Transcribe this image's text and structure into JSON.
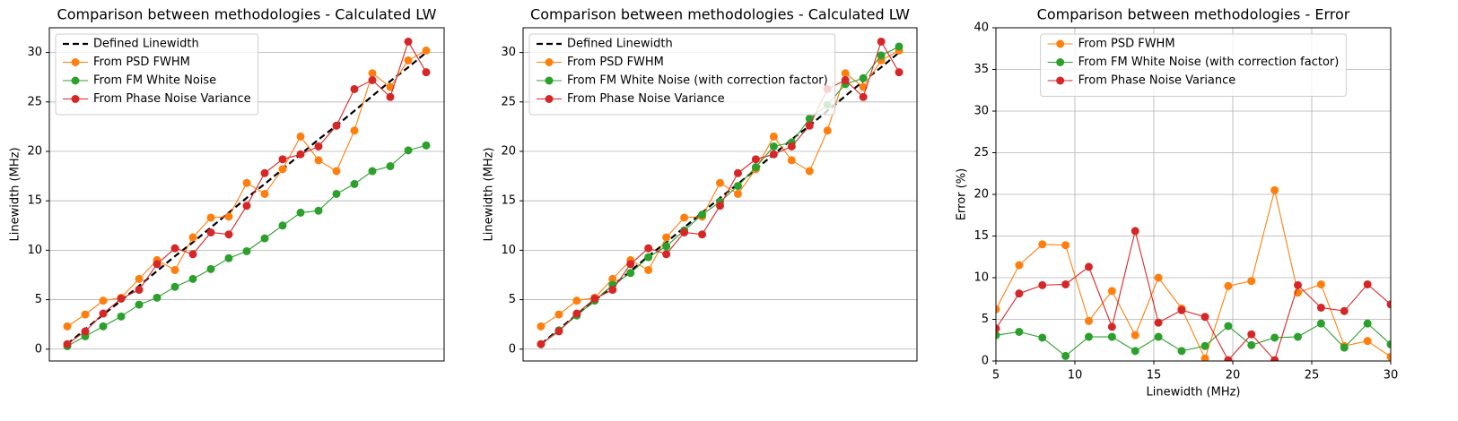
{
  "chart_data": [
    {
      "type": "line",
      "title": "Comparison between methodologies - Calculated LW",
      "ylabel": "Linewidth (MHz)",
      "categories": [
        null,
        null,
        null,
        null,
        null,
        null,
        null,
        null,
        null,
        null,
        null,
        null,
        null,
        null,
        null,
        null,
        null,
        null,
        null,
        null,
        null
      ],
      "ylim": [
        -1.2,
        32.5
      ],
      "yticks": [
        0,
        5,
        10,
        15,
        20,
        25,
        30
      ],
      "grid": "y",
      "legend": "upper left",
      "series": [
        {
          "name": "Defined Linewidth",
          "color": "#000000",
          "style": "dashed",
          "values": [
            0.5,
            2.0,
            3.5,
            4.9,
            6.4,
            7.9,
            9.4,
            10.8,
            12.3,
            13.8,
            15.3,
            16.7,
            18.2,
            19.7,
            21.2,
            22.6,
            24.1,
            25.6,
            27.1,
            28.5,
            30.0
          ]
        },
        {
          "name": "From PSD FWHM",
          "color": "#ff7f0e",
          "marker": "o",
          "values": [
            2.3,
            3.5,
            4.9,
            5.2,
            7.1,
            9.0,
            8.0,
            11.3,
            13.3,
            13.4,
            16.8,
            15.7,
            18.2,
            21.5,
            19.1,
            18.0,
            22.1,
            27.9,
            26.5,
            29.2,
            30.2
          ]
        },
        {
          "name": "From FM White Noise",
          "color": "#2ca02c",
          "marker": "o",
          "values": [
            0.3,
            1.3,
            2.3,
            3.3,
            4.5,
            5.2,
            6.3,
            7.1,
            8.1,
            9.2,
            9.9,
            11.2,
            12.5,
            13.8,
            14.0,
            15.7,
            16.7,
            18.0,
            18.5,
            20.1,
            20.6
          ]
        },
        {
          "name": "From Phase Noise Variance",
          "color": "#d62728",
          "marker": "o",
          "values": [
            0.5,
            1.8,
            3.6,
            5.1,
            6.0,
            8.6,
            10.2,
            9.6,
            11.8,
            11.6,
            14.5,
            17.8,
            19.2,
            19.7,
            20.5,
            22.6,
            26.3,
            27.2,
            25.5,
            31.1,
            28.0
          ]
        }
      ]
    },
    {
      "type": "line",
      "title": "Comparison between methodologies - Calculated LW",
      "ylabel": "Linewidth (MHz)",
      "categories": [
        null,
        null,
        null,
        null,
        null,
        null,
        null,
        null,
        null,
        null,
        null,
        null,
        null,
        null,
        null,
        null,
        null,
        null,
        null,
        null,
        null
      ],
      "ylim": [
        -1.2,
        32.5
      ],
      "yticks": [
        0,
        5,
        10,
        15,
        20,
        25,
        30
      ],
      "grid": "y",
      "legend": "upper left",
      "series": [
        {
          "name": "Defined Linewidth",
          "color": "#000000",
          "style": "dashed",
          "values": [
            0.5,
            2.0,
            3.5,
            4.9,
            6.4,
            7.9,
            9.4,
            10.8,
            12.3,
            13.8,
            15.3,
            16.7,
            18.2,
            19.7,
            21.2,
            22.6,
            24.1,
            25.6,
            27.1,
            28.5,
            30.0
          ]
        },
        {
          "name": "From PSD FWHM",
          "color": "#ff7f0e",
          "marker": "o",
          "values": [
            2.3,
            3.5,
            4.9,
            5.2,
            7.1,
            9.0,
            8.0,
            11.3,
            13.3,
            13.4,
            16.8,
            15.7,
            18.2,
            21.5,
            19.1,
            18.0,
            22.1,
            27.9,
            26.5,
            29.2,
            30.2
          ]
        },
        {
          "name": "From FM White Noise (with correction factor)",
          "color": "#2ca02c",
          "marker": "o",
          "values": [
            0.5,
            1.9,
            3.4,
            4.9,
            6.5,
            7.7,
            9.3,
            10.4,
            12.0,
            13.6,
            14.9,
            16.5,
            18.4,
            20.5,
            20.9,
            23.3,
            24.7,
            26.8,
            27.4,
            29.7,
            30.6
          ]
        },
        {
          "name": "From Phase Noise Variance",
          "color": "#d62728",
          "marker": "o",
          "values": [
            0.5,
            1.8,
            3.6,
            5.1,
            6.0,
            8.6,
            10.2,
            9.6,
            11.8,
            11.6,
            14.5,
            17.8,
            19.2,
            19.7,
            20.5,
            22.6,
            26.3,
            27.2,
            25.5,
            31.1,
            28.0
          ]
        }
      ]
    },
    {
      "type": "line",
      "title": "Comparison between methodologies - Error",
      "xlabel": "Linewidth (MHz)",
      "ylabel": "Error (%)",
      "x": [
        5,
        6.47,
        7.94,
        9.41,
        10.88,
        12.35,
        13.82,
        15.29,
        16.76,
        18.24,
        19.71,
        21.18,
        22.65,
        24.12,
        25.59,
        27.06,
        28.53,
        30
      ],
      "xlim": [
        5,
        30
      ],
      "xticks": [
        5,
        10,
        15,
        20,
        25,
        30
      ],
      "ylim": [
        0,
        40
      ],
      "yticks": [
        0,
        5,
        10,
        15,
        20,
        25,
        30,
        35,
        40
      ],
      "grid": "both",
      "legend": "upper center",
      "series": [
        {
          "name": "From PSD FWHM",
          "color": "#ff7f0e",
          "marker": "o",
          "values": [
            6.2,
            11.5,
            14.0,
            13.9,
            4.8,
            8.4,
            3.1,
            10.0,
            6.3,
            0.3,
            9.0,
            9.6,
            20.5,
            8.2,
            9.2,
            1.8,
            2.4,
            0.5
          ]
        },
        {
          "name": "From FM White Noise (with correction factor)",
          "color": "#2ca02c",
          "marker": "o",
          "values": [
            3.1,
            3.5,
            2.8,
            0.6,
            2.9,
            2.9,
            1.2,
            2.9,
            1.2,
            1.8,
            4.2,
            1.9,
            2.8,
            2.9,
            4.5,
            1.6,
            4.5,
            2.0
          ]
        },
        {
          "name": "From Phase Noise Variance",
          "color": "#d62728",
          "marker": "o",
          "values": [
            3.9,
            8.1,
            9.1,
            9.2,
            11.3,
            4.1,
            15.6,
            4.6,
            6.1,
            5.3,
            0.1,
            3.2,
            0.1,
            9.1,
            6.4,
            6.0,
            9.2,
            6.8
          ]
        }
      ]
    }
  ]
}
